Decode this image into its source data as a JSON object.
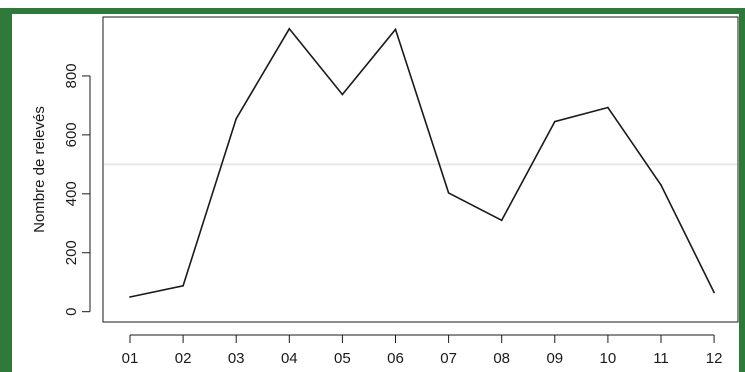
{
  "chart_data": {
    "type": "line",
    "title": "",
    "xlabel": "",
    "ylabel": "Nombre de relevés",
    "categories": [
      "01",
      "02",
      "03",
      "04",
      "05",
      "06",
      "07",
      "08",
      "09",
      "10",
      "11",
      "12"
    ],
    "values": [
      50,
      88,
      655,
      960,
      737,
      958,
      403,
      310,
      645,
      693,
      430,
      65
    ],
    "yticks": [
      "0",
      "200",
      "400",
      "600",
      "800"
    ],
    "ylim": [
      -35,
      1000
    ],
    "grid": false,
    "legend": "none",
    "reference_line": 500,
    "colors": {
      "frame_border": "#2f7a3a",
      "line": "#1a1a1a",
      "reference_line": "#e6e6e6",
      "background": "#ffffff"
    }
  }
}
